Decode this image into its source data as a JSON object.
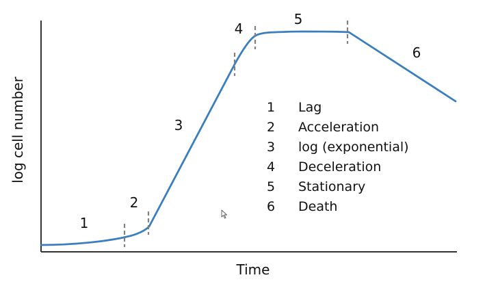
{
  "diagram": {
    "xlabel": "Time",
    "ylabel": "log cell number",
    "curve_color": "#3a7ebf",
    "marker_color": "#808080",
    "axis_color": "#333333",
    "phase_labels": [
      "1",
      "2",
      "3",
      "4",
      "5",
      "6"
    ],
    "legend": [
      {
        "number": "1",
        "label": "Lag"
      },
      {
        "number": "2",
        "label": "Acceleration"
      },
      {
        "number": "3",
        "label": "log (exponential)"
      },
      {
        "number": "4",
        "label": "Deceleration"
      },
      {
        "number": "5",
        "label": "Stationary"
      },
      {
        "number": "6",
        "label": "Death"
      }
    ]
  }
}
